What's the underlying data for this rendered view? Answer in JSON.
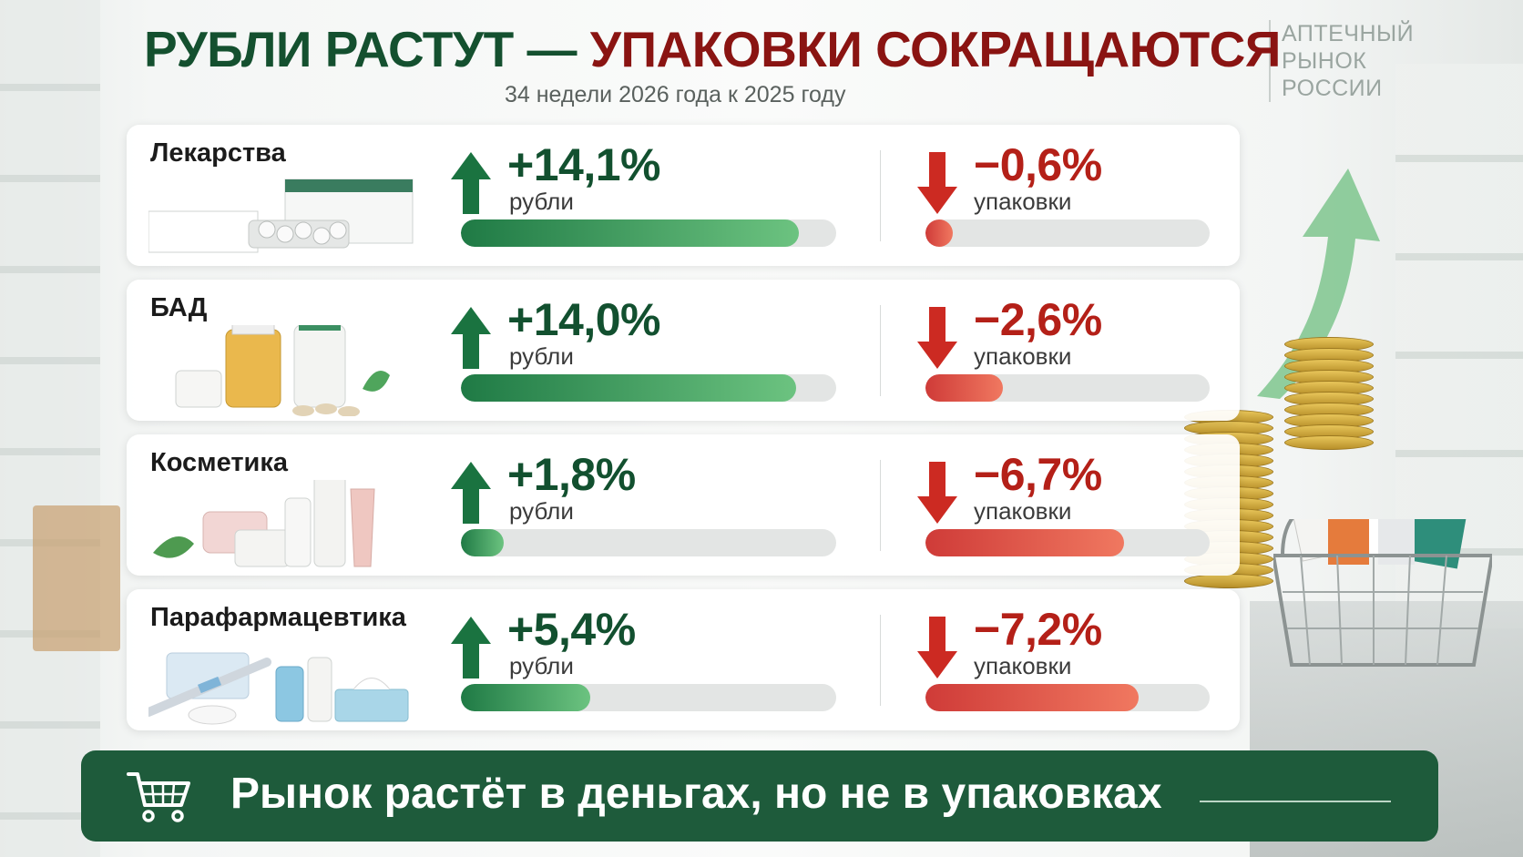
{
  "title": {
    "part1": "РУБЛИ РАСТУТ —",
    "part2": "УПАКОВКИ СОКРАЩАЮТСЯ"
  },
  "subtitle": "34 недели 2026 года к 2025 году",
  "brand": [
    "АПТЕЧНЫЙ",
    "РЫНОК",
    "РОССИИ"
  ],
  "rows": [
    {
      "category": "Лекарства",
      "rub_change": "+14,1%",
      "rub_label": "рубли",
      "pack_change": "−0,6%",
      "pack_label": "упаковки"
    },
    {
      "category": "БАД",
      "rub_change": "+14,0%",
      "rub_label": "рубли",
      "pack_change": "−2,6%",
      "pack_label": "упаковки"
    },
    {
      "category": "Косметика",
      "rub_change": "+1,8%",
      "rub_label": "рубли",
      "pack_change": "−6,7%",
      "pack_label": "упаковки"
    },
    {
      "category": "Парафармацевтика",
      "rub_change": "+5,4%",
      "rub_label": "рубли",
      "pack_change": "−7,2%",
      "pack_label": "упаковки"
    }
  ],
  "banner": {
    "text": "Рынок растёт в деньгах, но не в упаковках"
  },
  "colors": {
    "dark_green": "#1e5b3b",
    "title_green": "#14502f",
    "title_red": "#8a1412",
    "pos_green": "#12502f",
    "neg_red": "#b42018"
  },
  "chart_data": {
    "type": "bar",
    "categories": [
      "Лекарства",
      "БАД",
      "Косметика",
      "Парафармацевтика"
    ],
    "series": [
      {
        "name": "рубли",
        "values": [
          14.1,
          14.0,
          1.8,
          5.4
        ]
      },
      {
        "name": "упаковки",
        "values": [
          -0.6,
          -2.6,
          -6.7,
          -7.2
        ]
      }
    ],
    "title": "РУБЛИ РАСТУТ — УПАКОВКИ СОКРАЩАЮТСЯ",
    "subtitle": "34 недели 2026 года к 2025 году",
    "unit": "%"
  }
}
